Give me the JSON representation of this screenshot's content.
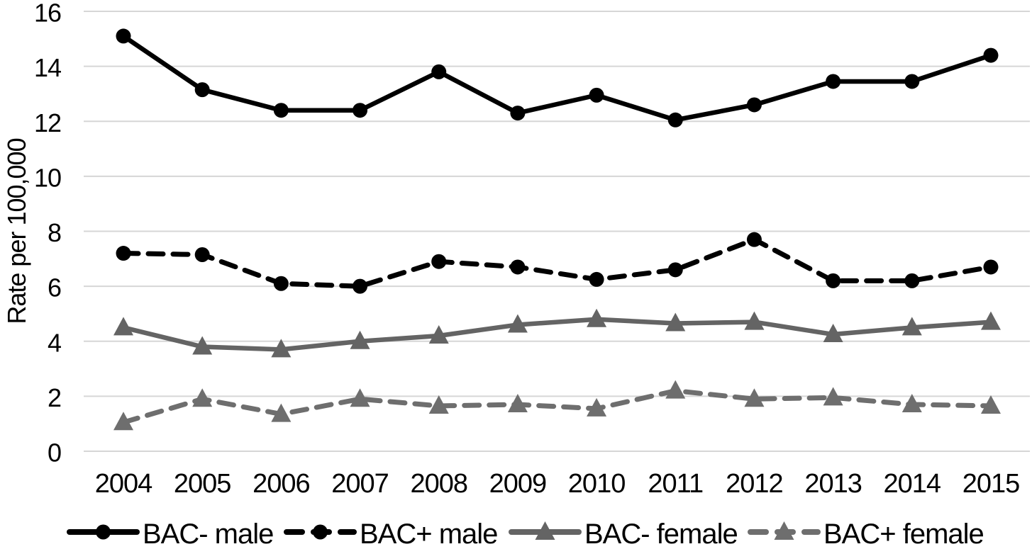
{
  "chart_data": {
    "type": "line",
    "title": "",
    "xlabel": "",
    "ylabel": "Rate per 100,000",
    "ylim": [
      0,
      16
    ],
    "ytick_step": 2,
    "yticks": [
      "0",
      "2",
      "4",
      "6",
      "8",
      "10",
      "12",
      "14",
      "16"
    ],
    "grid": "horizontal",
    "gridline_color": "#d6d6d6",
    "legend_position": "bottom",
    "categories": [
      "2004",
      "2005",
      "2006",
      "2007",
      "2008",
      "2009",
      "2010",
      "2011",
      "2012",
      "2013",
      "2014",
      "2015"
    ],
    "series": [
      {
        "name": "BAC- male",
        "color": "#000000",
        "line_style": "solid",
        "marker": "circle",
        "values": [
          15.1,
          13.15,
          12.4,
          12.4,
          13.8,
          12.3,
          12.95,
          12.05,
          12.6,
          13.45,
          13.45,
          14.4
        ]
      },
      {
        "name": "BAC+ male",
        "color": "#000000",
        "line_style": "dashed",
        "marker": "circle",
        "values": [
          7.2,
          7.15,
          6.1,
          6.0,
          6.9,
          6.7,
          6.25,
          6.6,
          7.7,
          6.2,
          6.2,
          6.7
        ]
      },
      {
        "name": "BAC- female",
        "color": "#646464",
        "line_style": "solid",
        "marker": "triangle",
        "values": [
          4.5,
          3.8,
          3.7,
          4.0,
          4.2,
          4.6,
          4.8,
          4.65,
          4.7,
          4.25,
          4.5,
          4.7
        ]
      },
      {
        "name": "BAC+ female",
        "color": "#6e6e6e",
        "line_style": "dashed",
        "marker": "triangle",
        "values": [
          1.05,
          1.9,
          1.35,
          1.9,
          1.65,
          1.7,
          1.55,
          2.2,
          1.9,
          1.95,
          1.7,
          1.65
        ]
      }
    ]
  }
}
